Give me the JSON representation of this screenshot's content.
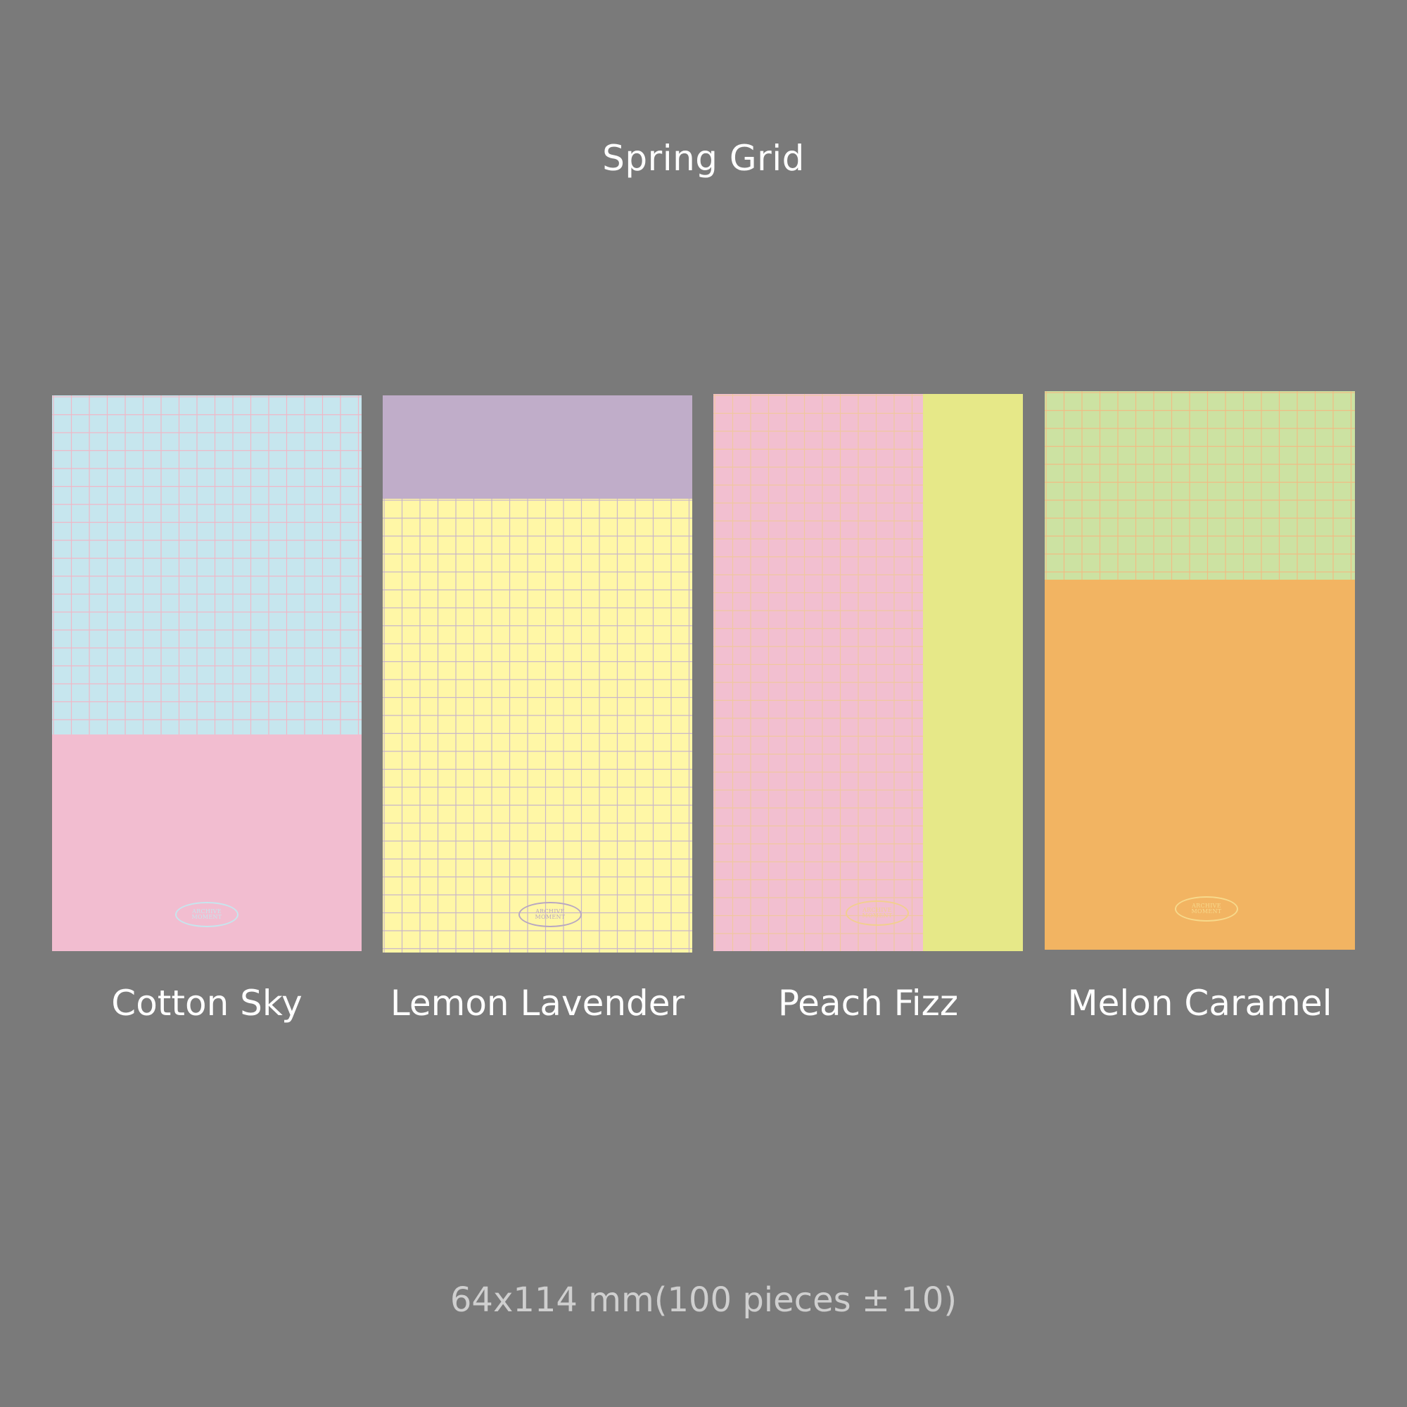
{
  "title": "Spring Grid",
  "products": [
    {
      "name": "Cotton Sky",
      "logo_line1": "ARCHIVE",
      "logo_line2": "MOMENT",
      "colors": {
        "grid_area": "#c6e6ee",
        "grid_line": "#efb8c7",
        "solid_area": "#f2bdd0",
        "logo": "#c6e6ee"
      }
    },
    {
      "name": "Lemon Lavender",
      "logo_line1": "ARCHIVE",
      "logo_line2": "MOMENT",
      "colors": {
        "grid_area": "#fff7a6",
        "grid_line": "#c9b7c9",
        "solid_area": "#c0adc9",
        "logo": "#b8a7c2"
      }
    },
    {
      "name": "Peach Fizz",
      "logo_line1": "ARCHIVE",
      "logo_line2": "MOMENT",
      "colors": {
        "grid_area": "#f2bfd0",
        "grid_line": "#f0c7a0",
        "solid_area": "#e6e888",
        "logo": "#f2cf8f"
      }
    },
    {
      "name": "Melon Caramel",
      "logo_line1": "ARCHIVE",
      "logo_line2": "MOMENT",
      "colors": {
        "grid_area": "#cce2a2",
        "grid_line": "#f0bd85",
        "solid_area": "#f2b462",
        "logo": "#f7d98b"
      }
    }
  ],
  "footer": "64x114 mm(100 pieces ± 10)"
}
